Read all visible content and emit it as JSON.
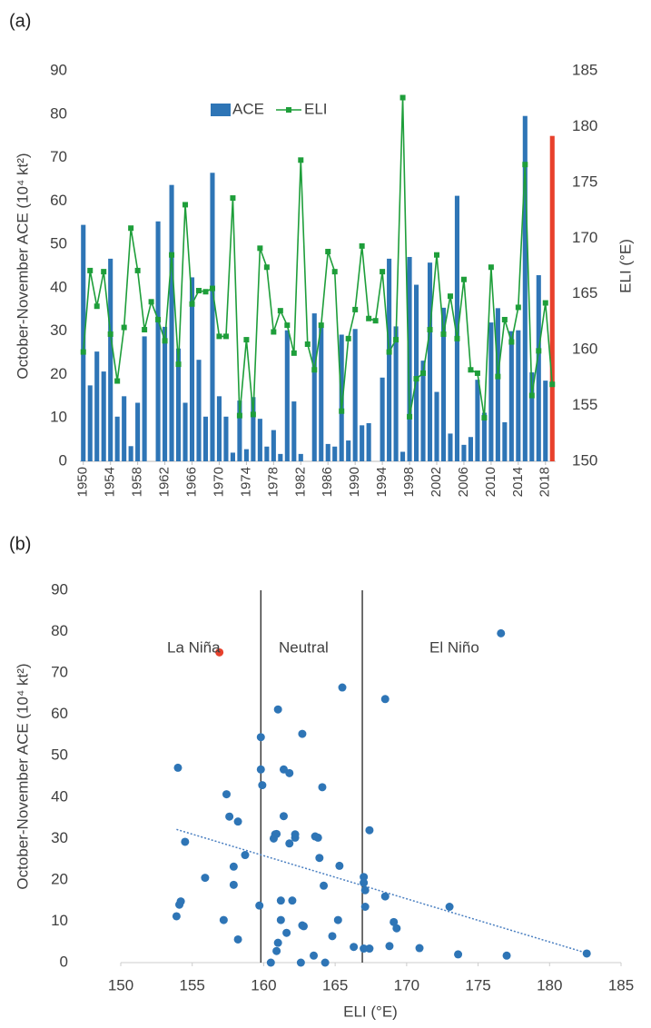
{
  "chart_data": [
    {
      "type": "bar",
      "panel_label": "(a)",
      "x": [
        1950,
        1951,
        1952,
        1953,
        1954,
        1955,
        1956,
        1957,
        1958,
        1959,
        1960,
        1961,
        1962,
        1963,
        1964,
        1965,
        1966,
        1967,
        1968,
        1969,
        1970,
        1971,
        1972,
        1973,
        1974,
        1975,
        1976,
        1977,
        1978,
        1979,
        1980,
        1981,
        1982,
        1983,
        1984,
        1985,
        1986,
        1987,
        1988,
        1989,
        1990,
        1991,
        1992,
        1993,
        1994,
        1995,
        1996,
        1997,
        1998,
        1999,
        2000,
        2001,
        2002,
        2003,
        2004,
        2005,
        2006,
        2007,
        2008,
        2009,
        2010,
        2011,
        2012,
        2013,
        2014,
        2015,
        2016,
        2017,
        2018,
        2019
      ],
      "xlim": [
        1949.5,
        2019.5
      ],
      "xticks": [
        1950,
        1954,
        1958,
        1962,
        1966,
        1970,
        1974,
        1978,
        1982,
        1986,
        1990,
        1994,
        1998,
        2002,
        2006,
        2010,
        2014,
        2018
      ],
      "ylabel": "October-November ACE (10⁴ kt²)",
      "ylim": [
        0,
        90
      ],
      "yticks": [
        0,
        10,
        20,
        30,
        40,
        50,
        60,
        70,
        80,
        90
      ],
      "y2label": "ELI (°E)",
      "y2lim": [
        150,
        185
      ],
      "y2ticks": [
        150,
        155,
        160,
        165,
        170,
        175,
        180,
        185
      ],
      "legend": "top",
      "series": [
        {
          "name": "ACE",
          "type": "bar",
          "color": "#2e75b6",
          "values": [
            54.5,
            17.5,
            25.3,
            20.7,
            46.7,
            10.3,
            15,
            3.5,
            13.5,
            28.8,
            0,
            55.3,
            31,
            63.7,
            26,
            13.5,
            42.4,
            23.4,
            10.3,
            66.5,
            15,
            10.3,
            2,
            14,
            2.8,
            14.8,
            9.8,
            3.4,
            7.2,
            1.7,
            30.2,
            13.8,
            1.7,
            0,
            34.1,
            31,
            4,
            3.4,
            29.2,
            4.8,
            30.5,
            8.3,
            8.8,
            0,
            19.3,
            46.7,
            31.1,
            2.2,
            47.1,
            40.7,
            23.2,
            45.8,
            16,
            35.4,
            6.4,
            61.2,
            3.8,
            5.6,
            18.8,
            11.2,
            32,
            35.3,
            9,
            30,
            30.2,
            79.6,
            20.5,
            42.9,
            18.6,
            null
          ]
        },
        {
          "type": "bar",
          "color": "#e8412c",
          "values": [
            null,
            null,
            null,
            null,
            null,
            null,
            null,
            null,
            null,
            null,
            null,
            null,
            null,
            null,
            null,
            null,
            null,
            null,
            null,
            null,
            null,
            null,
            null,
            null,
            null,
            null,
            null,
            null,
            null,
            null,
            null,
            null,
            null,
            null,
            null,
            null,
            null,
            null,
            null,
            null,
            null,
            null,
            null,
            null,
            null,
            null,
            null,
            null,
            null,
            null,
            null,
            null,
            null,
            null,
            null,
            null,
            null,
            null,
            null,
            null,
            null,
            null,
            null,
            null,
            null,
            null,
            null,
            null,
            null,
            75
          ]
        },
        {
          "name": "ELI",
          "type": "line",
          "axis": "y2",
          "color": "#1e9e3a",
          "values": [
            159.8,
            167.1,
            163.9,
            167,
            161.4,
            157.2,
            162,
            170.9,
            167.1,
            161.8,
            164.3,
            162.7,
            160.8,
            168.5,
            158.7,
            173,
            164.1,
            165.3,
            165.2,
            165.5,
            161.2,
            161.2,
            173.6,
            154.1,
            160.9,
            154.2,
            169.1,
            167.4,
            161.6,
            163.5,
            162.2,
            159.7,
            177,
            160.5,
            158.2,
            162.2,
            168.8,
            167,
            154.5,
            161,
            163.6,
            169.3,
            162.8,
            162.6,
            167,
            159.8,
            160.9,
            182.6,
            154,
            157.4,
            157.9,
            161.8,
            168.5,
            161.4,
            164.8,
            161,
            166.3,
            158.2,
            157.9,
            153.9,
            167.4,
            157.6,
            162.7,
            160.7,
            163.8,
            176.6,
            155.9,
            159.9,
            164.2,
            156.9
          ]
        }
      ]
    },
    {
      "type": "scatter",
      "panel_label": "(b)",
      "xlabel": "ELI (°E)",
      "xlim": [
        150,
        185
      ],
      "xticks": [
        150,
        155,
        160,
        165,
        170,
        175,
        180,
        185
      ],
      "ylabel": "October-November ACE (10⁴ kt²)",
      "ylim": [
        0,
        90
      ],
      "yticks": [
        0,
        10,
        20,
        30,
        40,
        50,
        60,
        70,
        80,
        90
      ],
      "series": [
        {
          "color": "#2e75b6",
          "x": [
            159.8,
            167.1,
            163.9,
            167,
            161.4,
            157.2,
            162,
            170.9,
            167.1,
            161.8,
            164.3,
            162.7,
            160.8,
            168.5,
            158.7,
            173,
            164.1,
            165.3,
            165.2,
            165.5,
            161.2,
            161.2,
            173.6,
            154.1,
            160.9,
            154.2,
            169.1,
            167.4,
            161.6,
            163.5,
            162.2,
            159.7,
            177,
            160.5,
            158.2,
            162.2,
            168.8,
            167,
            154.5,
            161,
            163.6,
            169.3,
            162.8,
            162.6,
            167,
            159.8,
            160.9,
            182.6,
            154,
            157.4,
            157.9,
            161.8,
            168.5,
            161.4,
            164.8,
            161,
            166.3,
            158.2,
            157.9,
            153.9,
            167.4,
            157.6,
            162.7,
            160.7,
            163.8,
            176.6,
            155.9,
            159.9,
            164.2
          ],
          "y": [
            54.5,
            17.5,
            25.3,
            20.7,
            46.7,
            10.3,
            15,
            3.5,
            13.5,
            28.8,
            0,
            55.3,
            31,
            63.7,
            26,
            13.5,
            42.4,
            23.4,
            10.3,
            66.5,
            15,
            10.3,
            2,
            14,
            2.8,
            14.8,
            9.8,
            3.4,
            7.2,
            1.7,
            30.2,
            13.8,
            1.7,
            0,
            34.1,
            31,
            4,
            3.4,
            29.2,
            4.8,
            30.5,
            8.3,
            8.8,
            0,
            19.3,
            46.7,
            31.1,
            2.2,
            47.1,
            40.7,
            23.2,
            45.8,
            16,
            35.4,
            6.4,
            61.2,
            3.8,
            5.6,
            18.8,
            11.2,
            32,
            35.3,
            9,
            30,
            30.2,
            79.6,
            20.5,
            42.9,
            18.6
          ]
        },
        {
          "color": "#e8412c",
          "x": [
            156.9
          ],
          "y": [
            75
          ]
        }
      ],
      "trendline": {
        "color": "#4a7fc1",
        "x": [
          153.9,
          182.6
        ],
        "y": [
          32.2,
          2.3
        ]
      },
      "dividers": [
        159.8,
        166.9
      ],
      "annotations": [
        "La Niña",
        "Neutral",
        "El Niño"
      ]
    }
  ]
}
